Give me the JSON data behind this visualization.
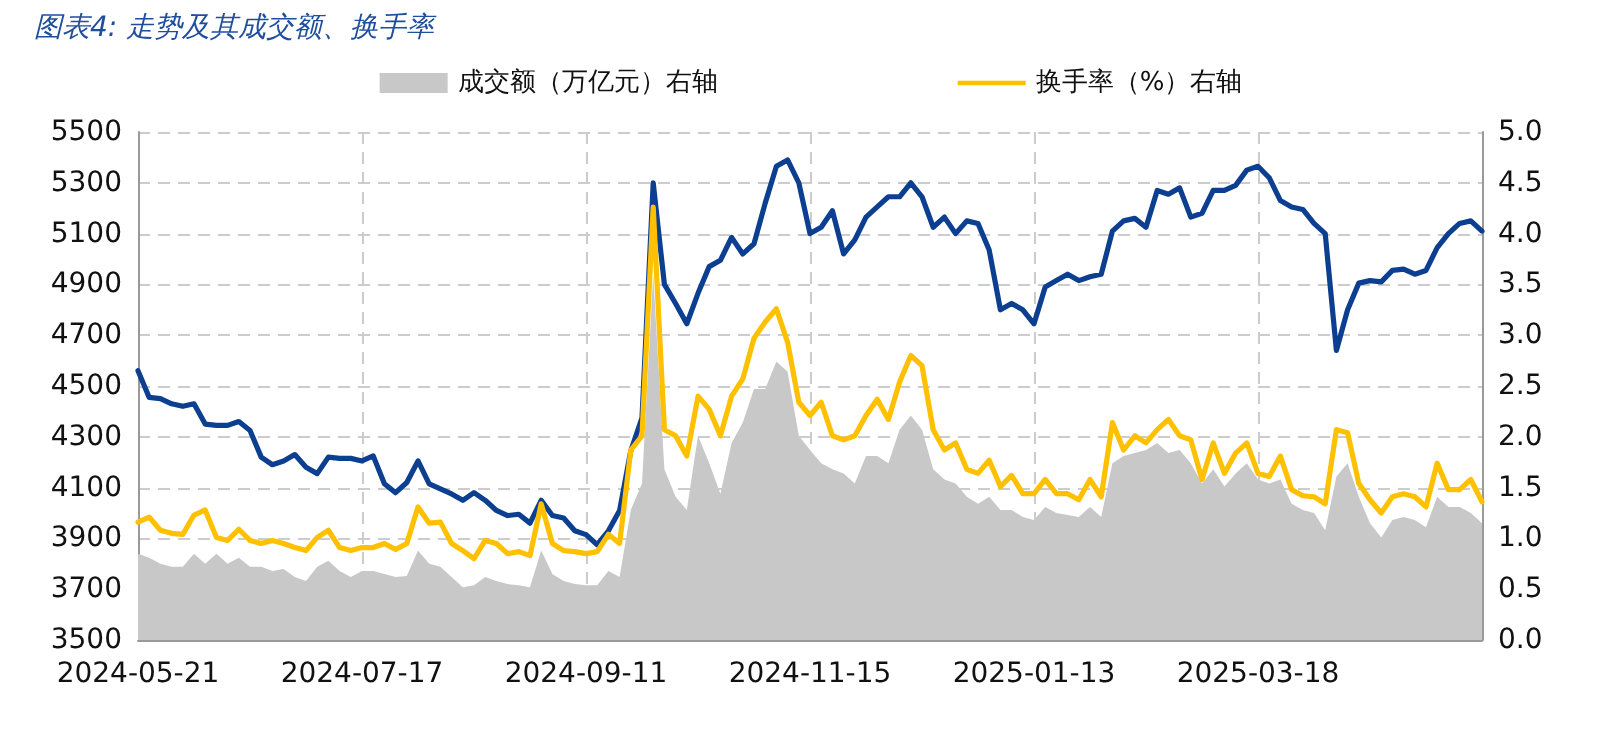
{
  "chart_data": {
    "type": "line",
    "title": "图表4: 走势及其成交额、换手率",
    "categories": [
      "2024-05-21",
      null,
      null,
      null,
      null,
      null,
      null,
      null,
      null,
      null,
      null,
      null,
      null,
      null,
      null,
      null,
      null,
      null,
      null,
      null,
      "2024-07-17",
      null,
      null,
      null,
      null,
      null,
      null,
      null,
      null,
      null,
      null,
      null,
      null,
      null,
      null,
      null,
      null,
      null,
      null,
      null,
      "2024-09-11",
      null,
      null,
      null,
      null,
      null,
      null,
      null,
      null,
      null,
      null,
      null,
      null,
      null,
      null,
      null,
      null,
      null,
      null,
      null,
      "2024-11-15",
      null,
      null,
      null,
      null,
      null,
      null,
      null,
      null,
      null,
      null,
      null,
      null,
      null,
      null,
      null,
      null,
      null,
      null,
      null,
      "2025-01-13",
      null,
      null,
      null,
      null,
      null,
      null,
      null,
      null,
      null,
      null,
      null,
      null,
      null,
      null,
      null,
      null,
      null,
      null,
      null,
      "2025-03-18",
      null,
      null,
      null,
      null,
      null,
      null,
      null,
      null,
      null,
      null,
      null,
      null,
      null,
      null,
      null,
      null,
      null,
      null,
      null,
      null
    ],
    "series": [
      {
        "name": "成交额（万亿元）右轴",
        "type": "area",
        "axis": "y2",
        "color": "#c8c8c8",
        "values": [
          0.85,
          0.81,
          0.75,
          0.72,
          0.72,
          0.85,
          0.75,
          0.85,
          0.75,
          0.81,
          0.72,
          0.72,
          0.68,
          0.7,
          0.62,
          0.58,
          0.72,
          0.78,
          0.68,
          0.62,
          0.68,
          0.68,
          0.65,
          0.62,
          0.63,
          0.88,
          0.75,
          0.72,
          0.62,
          0.52,
          0.54,
          0.62,
          0.58,
          0.55,
          0.54,
          0.52,
          0.88,
          0.65,
          0.58,
          0.55,
          0.54,
          0.54,
          0.68,
          0.62,
          1.28,
          1.54,
          3.6,
          1.68,
          1.41,
          1.28,
          2.01,
          1.74,
          1.44,
          1.94,
          2.14,
          2.47,
          2.47,
          2.74,
          2.64,
          2.01,
          1.87,
          1.74,
          1.68,
          1.64,
          1.54,
          1.81,
          1.81,
          1.74,
          2.07,
          2.21,
          2.07,
          1.68,
          1.58,
          1.54,
          1.41,
          1.34,
          1.41,
          1.28,
          1.28,
          1.21,
          1.18,
          1.31,
          1.25,
          1.23,
          1.21,
          1.31,
          1.21,
          1.74,
          1.81,
          1.84,
          1.87,
          1.94,
          1.84,
          1.87,
          1.74,
          1.54,
          1.68,
          1.51,
          1.64,
          1.74,
          1.58,
          1.54,
          1.58,
          1.34,
          1.28,
          1.25,
          1.08,
          1.61,
          1.74,
          1.41,
          1.15,
          1.01,
          1.18,
          1.21,
          1.18,
          1.11,
          1.41,
          1.31,
          1.31,
          1.25,
          1.15
        ]
      },
      {
        "color": "#0d3f91",
        "values": [
          4560,
          4455,
          4450,
          4430,
          4420,
          4430,
          4350,
          4345,
          4345,
          4360,
          4325,
          4220,
          4190,
          4205,
          4230,
          4180,
          4155,
          4220,
          4215,
          4215,
          4205,
          4225,
          4115,
          4080,
          4120,
          4205,
          4115,
          4095,
          4075,
          4050,
          4080,
          4050,
          4010,
          3990,
          3995,
          3960,
          4050,
          3990,
          3980,
          3930,
          3915,
          3875,
          3930,
          4010,
          4245,
          4375,
          5300,
          4900,
          4825,
          4745,
          4865,
          4970,
          4995,
          5085,
          5020,
          5060,
          5220,
          5365,
          5390,
          5300,
          5100,
          5125,
          5190,
          5020,
          5075,
          5165,
          5205,
          5245,
          5245,
          5300,
          5245,
          5125,
          5165,
          5100,
          5150,
          5140,
          5035,
          4800,
          4825,
          4800,
          4745,
          4890,
          4915,
          4940,
          4915,
          4930,
          4940,
          5110,
          5150,
          5160,
          5125,
          5270,
          5255,
          5280,
          5165,
          5180,
          5270,
          5270,
          5290,
          5350,
          5365,
          5320,
          5230,
          5205,
          5195,
          5140,
          5100,
          4640,
          4800,
          4905,
          4915,
          4910,
          4955,
          4960,
          4940,
          4955,
          5045,
          5100,
          5140,
          5150,
          5110
        ]
      },
      {
        "name": "换手率（%）右轴",
        "axis": "y2",
        "color": "#ffc000",
        "values": [
          1.16,
          1.21,
          1.08,
          1.05,
          1.04,
          1.23,
          1.28,
          1.01,
          0.98,
          1.09,
          0.98,
          0.95,
          0.98,
          0.95,
          0.91,
          0.88,
          1.01,
          1.08,
          0.91,
          0.88,
          0.91,
          0.91,
          0.95,
          0.89,
          0.95,
          1.31,
          1.15,
          1.16,
          0.95,
          0.88,
          0.8,
          0.98,
          0.95,
          0.85,
          0.87,
          0.83,
          1.34,
          0.95,
          0.88,
          0.87,
          0.85,
          0.87,
          1.04,
          0.95,
          1.87,
          2.01,
          4.26,
          2.07,
          2.01,
          1.81,
          2.4,
          2.27,
          2.01,
          2.4,
          2.57,
          2.97,
          3.13,
          3.26,
          2.93,
          2.34,
          2.21,
          2.34,
          2.01,
          1.97,
          2.01,
          2.21,
          2.37,
          2.17,
          2.54,
          2.8,
          2.7,
          2.07,
          1.87,
          1.94,
          1.68,
          1.64,
          1.77,
          1.51,
          1.62,
          1.44,
          1.44,
          1.58,
          1.44,
          1.44,
          1.38,
          1.58,
          1.41,
          2.14,
          1.87,
          2.01,
          1.94,
          2.07,
          2.17,
          2.01,
          1.97,
          1.58,
          1.94,
          1.64,
          1.84,
          1.94,
          1.64,
          1.61,
          1.81,
          1.48,
          1.42,
          1.41,
          1.34,
          2.07,
          2.04,
          1.54,
          1.38,
          1.25,
          1.41,
          1.44,
          1.41,
          1.31,
          1.74,
          1.48,
          1.48,
          1.58,
          1.36
        ]
      }
    ],
    "ylim": [
      3500,
      5500
    ],
    "yticks": [
      3500,
      3700,
      3900,
      4100,
      4300,
      4500,
      4700,
      4900,
      5100,
      5300,
      5500
    ],
    "y2lim": [
      0,
      5
    ],
    "y2ticks": [
      {
        "value": 0,
        "label": "0.0"
      },
      {
        "value": 0.5,
        "label": "0.5"
      },
      {
        "value": 1,
        "label": "1.0"
      },
      {
        "value": 1.5,
        "label": "1.5"
      },
      {
        "value": 2,
        "label": "2.0"
      },
      {
        "value": 2.5,
        "label": "2.5"
      },
      {
        "value": 3,
        "label": "3.0"
      },
      {
        "value": 3.5,
        "label": "3.5"
      },
      {
        "value": 4,
        "label": "4.0"
      },
      {
        "value": 4.5,
        "label": "4.5"
      },
      {
        "value": 5,
        "label": "5.0"
      }
    ],
    "grid": true,
    "legend": "top",
    "marker": "none",
    "line_style": "solid"
  }
}
